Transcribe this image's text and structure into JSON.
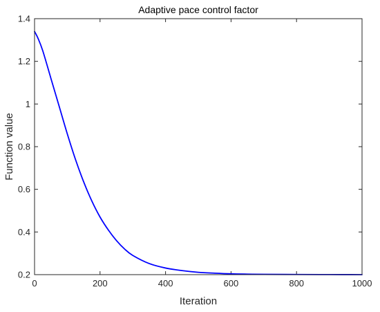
{
  "chart_data": {
    "type": "line",
    "title": "Adaptive pace control factor",
    "xlabel": "Iteration",
    "ylabel": "Function value",
    "xlim": [
      0,
      1000
    ],
    "ylim": [
      0.2,
      1.4
    ],
    "xticks": [
      0,
      200,
      400,
      600,
      800,
      1000
    ],
    "xtick_labels": [
      "0",
      "200",
      "400",
      "600",
      "800",
      "1000"
    ],
    "yticks": [
      0.2,
      0.4,
      0.6,
      0.8,
      1.0,
      1.2,
      1.4
    ],
    "ytick_labels": [
      "0.2",
      "0.4",
      "0.6",
      "0.8",
      "1",
      "1.2",
      "1.4"
    ],
    "grid": false,
    "legend": "none",
    "line_color": "#0000ff",
    "series": [
      {
        "x": [
          0,
          10,
          25,
          50,
          75,
          100,
          125,
          150,
          175,
          200,
          225,
          250,
          275,
          300,
          350,
          400,
          450,
          500,
          550,
          600,
          650,
          700,
          800,
          900,
          1000
        ],
        "values": [
          1.34,
          1.31,
          1.25,
          1.12,
          0.99,
          0.86,
          0.74,
          0.635,
          0.545,
          0.47,
          0.41,
          0.36,
          0.32,
          0.29,
          0.252,
          0.231,
          0.219,
          0.211,
          0.207,
          0.204,
          0.2025,
          0.2015,
          0.2007,
          0.2003,
          0.2001
        ]
      }
    ]
  }
}
